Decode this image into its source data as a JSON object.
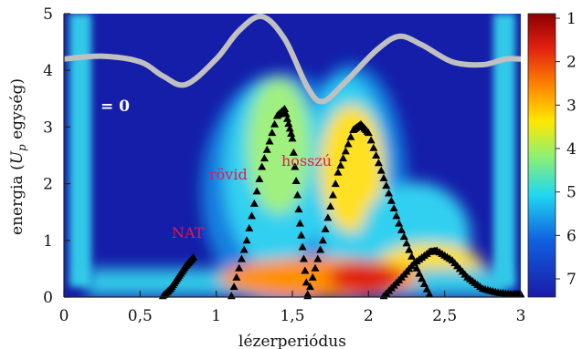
{
  "chart_data": {
    "type": "heatmap",
    "xlabel": "lézerperiódus",
    "ylabel": "energia (U_p egység)",
    "ylabel_prefix": "energia (",
    "ylabel_var": "U",
    "ylabel_sub": "p",
    "ylabel_suffix": " egység)",
    "xlim": [
      0,
      3
    ],
    "ylim": [
      0,
      5
    ],
    "x_ticks": [
      0,
      0.5,
      1,
      1.5,
      2,
      2.5,
      3
    ],
    "x_tick_labels": [
      "0",
      "0,5",
      "1",
      "1,5",
      "2",
      "2,5",
      "3"
    ],
    "y_ticks": [
      0,
      1,
      2,
      3,
      4,
      5
    ],
    "y_tick_labels": [
      "0",
      "1",
      "2",
      "3",
      "4",
      "5"
    ],
    "colorbar": {
      "ticks": [
        1,
        2,
        3,
        4,
        5,
        6,
        7
      ],
      "tick_labels": [
        "1",
        "2",
        "3",
        "4",
        "5",
        "6",
        "7"
      ],
      "colors_top_to_bottom": [
        "#8c0000",
        "#e02010",
        "#ff8a00",
        "#ffe800",
        "#90f070",
        "#20d8f0",
        "#1060e0",
        "#1a1aa8"
      ]
    },
    "annotations": {
      "zero": "= 0",
      "short": "rövid",
      "long": "hosszú",
      "nat": "NAT"
    },
    "field_curve": {
      "x": [
        0,
        0.25,
        0.5,
        0.65,
        0.8,
        1.0,
        1.15,
        1.3,
        1.45,
        1.6,
        1.7,
        1.85,
        2.05,
        2.2,
        2.35,
        2.55,
        2.75,
        2.9,
        3.0
      ],
      "y": [
        4.2,
        4.25,
        4.15,
        3.9,
        3.75,
        4.2,
        4.7,
        4.95,
        4.55,
        3.7,
        3.45,
        3.8,
        4.35,
        4.6,
        4.45,
        4.15,
        4.1,
        4.2,
        4.2
      ]
    },
    "trajectories": [
      {
        "name": "NAT",
        "x": [
          0.65,
          0.7,
          0.75,
          0.8,
          0.85
        ],
        "y": [
          0.02,
          0.15,
          0.35,
          0.55,
          0.7
        ]
      },
      {
        "name": "rövid 1",
        "x": [
          1.1,
          1.2,
          1.3,
          1.4,
          1.45,
          1.5,
          1.55,
          1.6
        ],
        "y": [
          0.02,
          1.0,
          2.3,
          3.2,
          3.32,
          2.8,
          1.3,
          0.05
        ]
      },
      {
        "name": "hosszú 1",
        "x": [
          1.6,
          1.7,
          1.8,
          1.9,
          1.95,
          2.0,
          2.1,
          2.2,
          2.3,
          2.4
        ],
        "y": [
          0.02,
          1.0,
          2.2,
          2.95,
          3.05,
          2.9,
          2.1,
          1.3,
          0.6,
          0.05
        ]
      },
      {
        "name": "hosszú 2",
        "x": [
          2.1,
          2.2,
          2.3,
          2.4,
          2.45,
          2.55,
          2.65,
          2.75,
          2.85,
          2.95,
          3.0
        ],
        "y": [
          0.02,
          0.3,
          0.6,
          0.8,
          0.82,
          0.65,
          0.35,
          0.15,
          0.08,
          0.05,
          0.05
        ]
      }
    ]
  }
}
